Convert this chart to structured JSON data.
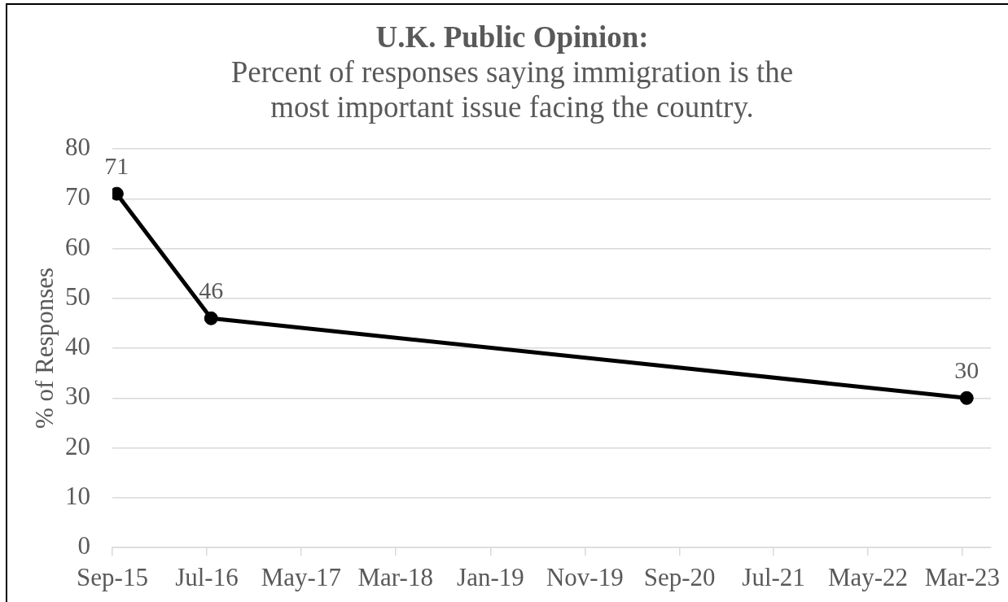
{
  "chart_data": {
    "type": "line",
    "title": "U.K. Public Opinion:",
    "subtitle": "Percent of responses saying immigration is the most important issue facing the country.",
    "ylabel": "% of Responses",
    "x": [
      "2015-09-15",
      "2016-07-15",
      "2023-03-15"
    ],
    "series": [
      {
        "color": "#000000",
        "values": [
          71,
          46,
          30
        ]
      }
    ],
    "xlim": [
      "2015-09",
      "2023-06"
    ],
    "xticks": [
      {
        "value": "2015-09",
        "label": "Sep-15"
      },
      {
        "value": "2016-07",
        "label": "Jul-16"
      },
      {
        "value": "2017-05",
        "label": "May-17"
      },
      {
        "value": "2018-03",
        "label": "Mar-18"
      },
      {
        "value": "2019-01",
        "label": "Jan-19"
      },
      {
        "value": "2019-11",
        "label": "Nov-19"
      },
      {
        "value": "2020-09",
        "label": "Sep-20"
      },
      {
        "value": "2021-07",
        "label": "Jul-21"
      },
      {
        "value": "2022-05",
        "label": "May-22"
      },
      {
        "value": "2023-03",
        "label": "Mar-23"
      }
    ],
    "ylim": [
      0,
      80
    ],
    "yticks": [
      0,
      10,
      20,
      30,
      40,
      50,
      60,
      70,
      80
    ],
    "grid": "y",
    "marker": "circle",
    "line_style": "solid",
    "data_labels": true
  }
}
